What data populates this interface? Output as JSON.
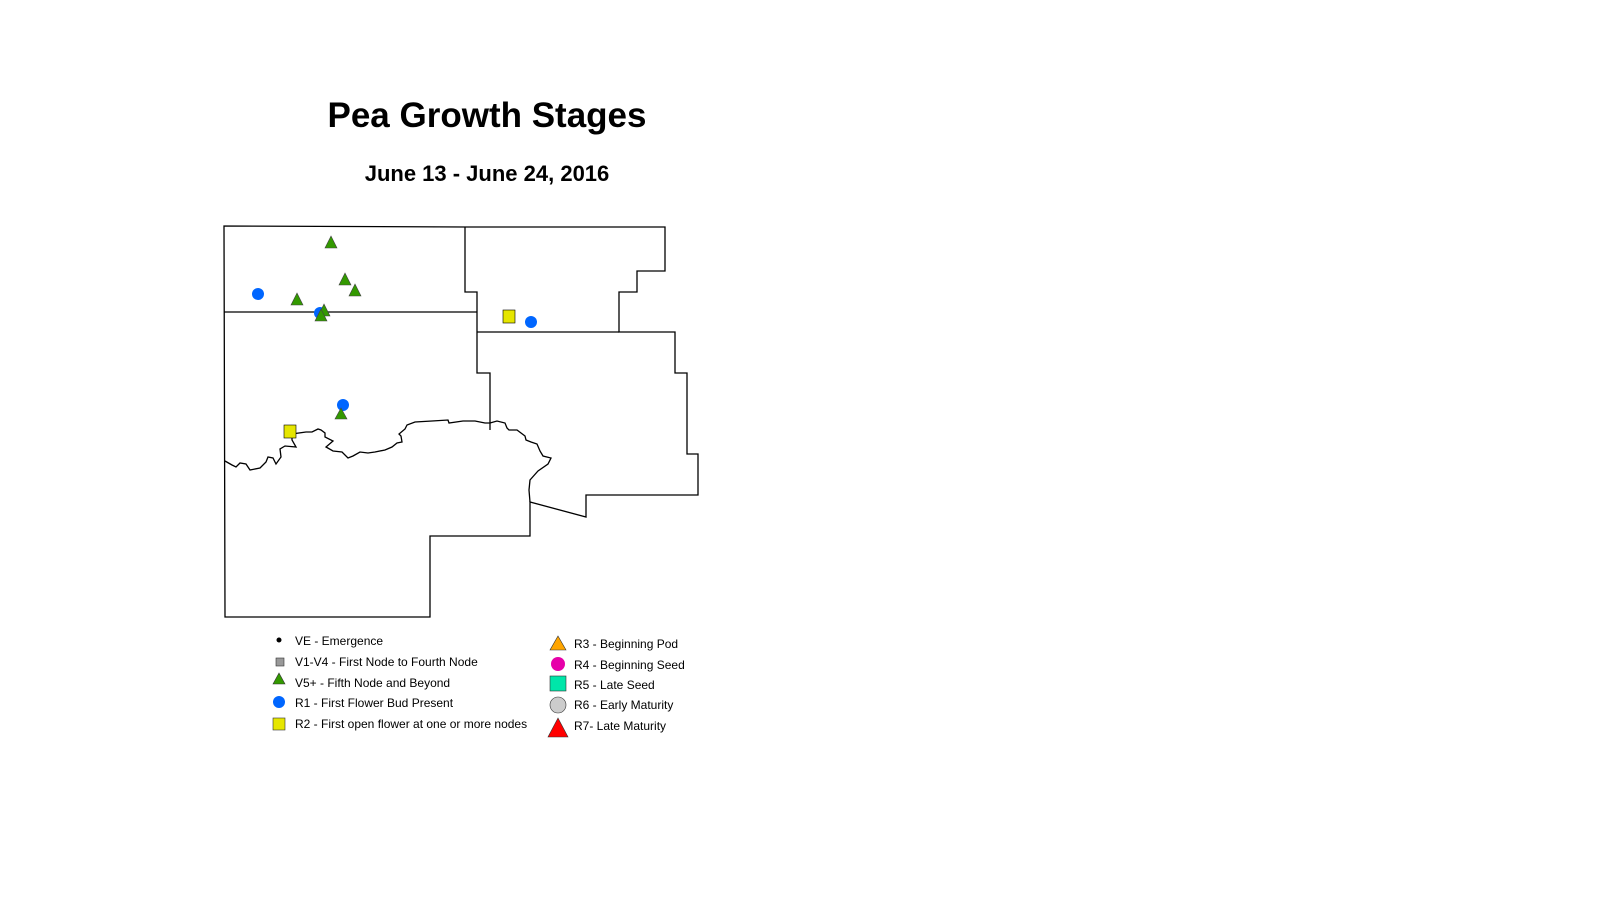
{
  "title": "Pea Growth Stages",
  "subtitle": "June 13 - June 24, 2016",
  "legend": {
    "left": [
      {
        "label": "VE - Emergence",
        "symbol": "dot",
        "color": "#000000"
      },
      {
        "label": "V1-V4 - First Node to Fourth Node",
        "symbol": "square",
        "color": "#999999"
      },
      {
        "label": "V5+ - Fifth Node and Beyond",
        "symbol": "triangle",
        "color": "#339900"
      },
      {
        "label": "R1 - First Flower Bud Present",
        "symbol": "circle",
        "color": "#0066ff"
      },
      {
        "label": "R2 - First open flower at one or more nodes",
        "symbol": "square",
        "color": "#e6e600"
      }
    ],
    "right": [
      {
        "label": "R3 - Beginning Pod",
        "symbol": "triangle",
        "color": "#ffa500"
      },
      {
        "label": "R4 - Beginning Seed",
        "symbol": "circle",
        "color": "#e600a9"
      },
      {
        "label": "R5 - Late Seed",
        "symbol": "square",
        "color": "#00e6a9"
      },
      {
        "label": "R6 - Early Maturity",
        "symbol": "circle",
        "color": "#cccccc"
      },
      {
        "label": "R7- Late Maturity",
        "symbol": "triangle",
        "color": "#ff0000"
      }
    ]
  },
  "observations": [
    {
      "stage": "V5+",
      "count": 8
    },
    {
      "stage": "R1",
      "count": 4
    },
    {
      "stage": "R2",
      "count": 2
    }
  ]
}
